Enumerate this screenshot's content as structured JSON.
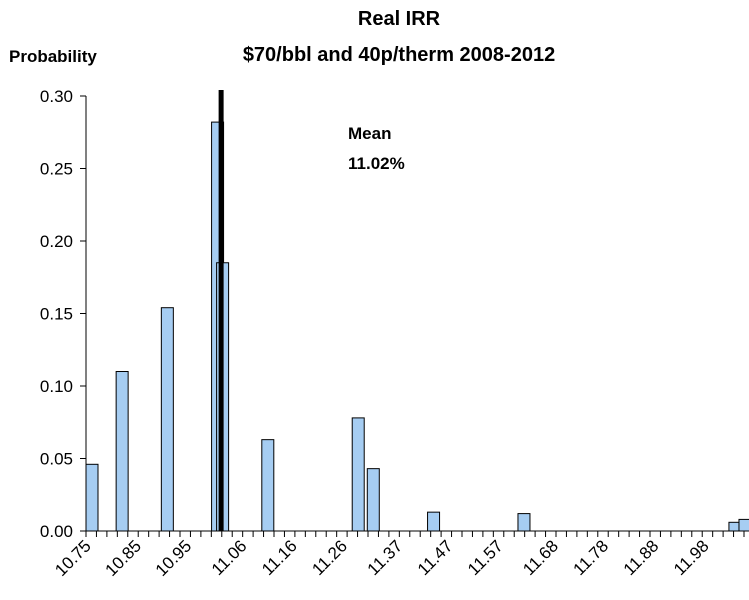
{
  "chart_data": {
    "type": "bar",
    "title": "Real IRR",
    "subtitle": "$70/bbl and 40p/therm 2008-2012",
    "ylabel": "Probability",
    "xlabel": "",
    "ylim": [
      0,
      0.3
    ],
    "yticks": [
      "0.00",
      "0.05",
      "0.10",
      "0.15",
      "0.20",
      "0.25",
      "0.30"
    ],
    "x_tick_labels": [
      {
        "value": 10.75,
        "label": "10.75"
      },
      {
        "value": 10.85,
        "label": "10.85"
      },
      {
        "value": 10.95,
        "label": "10.95"
      },
      {
        "value": 11.06,
        "label": "11.06"
      },
      {
        "value": 11.16,
        "label": "11.16"
      },
      {
        "value": 11.26,
        "label": "11.26"
      },
      {
        "value": 11.37,
        "label": "11.37"
      },
      {
        "value": 11.47,
        "label": "11.47"
      },
      {
        "value": 11.57,
        "label": "11.57"
      },
      {
        "value": 11.68,
        "label": "11.68"
      },
      {
        "value": 11.78,
        "label": "11.78"
      },
      {
        "value": 11.88,
        "label": "11.88"
      },
      {
        "value": 11.98,
        "label": "11.98"
      }
    ],
    "bins": [
      {
        "x": 10.75,
        "value": 0.046
      },
      {
        "x": 10.81,
        "value": 0.11
      },
      {
        "x": 10.9,
        "value": 0.154
      },
      {
        "x": 11.0,
        "value": 0.282
      },
      {
        "x": 11.01,
        "value": 0.185
      },
      {
        "x": 11.1,
        "value": 0.063
      },
      {
        "x": 11.28,
        "value": 0.078
      },
      {
        "x": 11.31,
        "value": 0.043
      },
      {
        "x": 11.43,
        "value": 0.013
      },
      {
        "x": 11.61,
        "value": 0.012
      },
      {
        "x": 12.03,
        "value": 0.006
      },
      {
        "x": 12.05,
        "value": 0.008
      }
    ],
    "mean_line": {
      "value": 11.02
    },
    "annotation": {
      "line1": "Mean",
      "line2": "11.02%"
    },
    "bar_color": "#a6cdf2",
    "bar_stroke": "#000000",
    "grid": false
  }
}
